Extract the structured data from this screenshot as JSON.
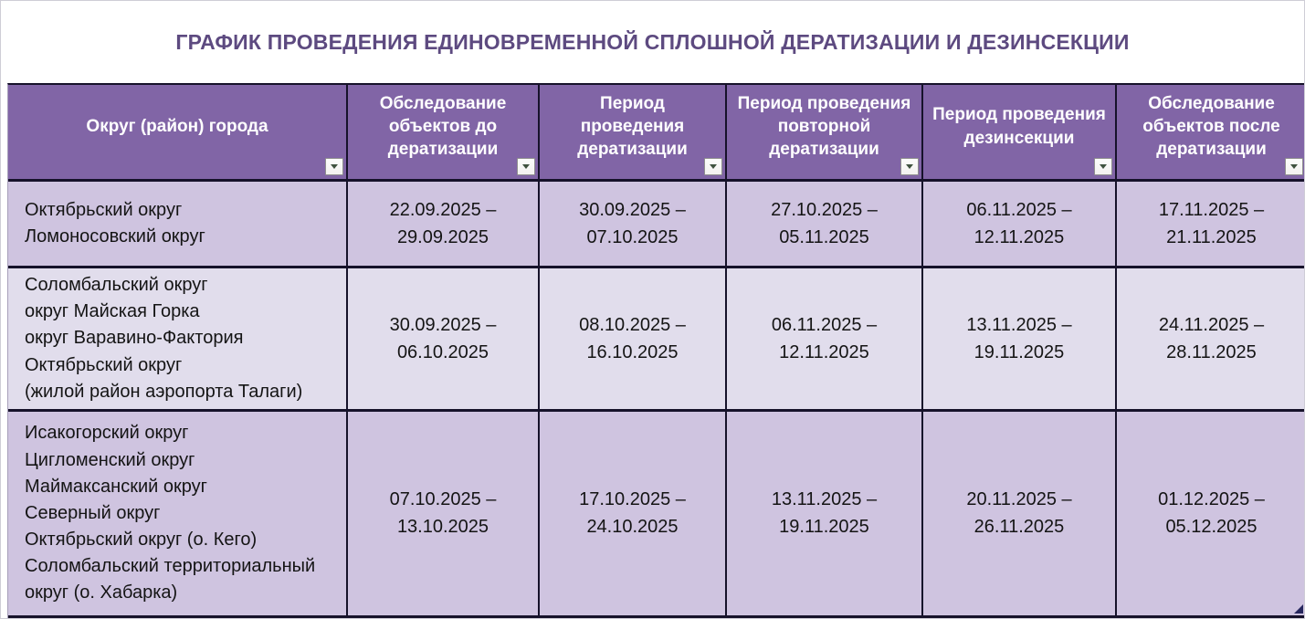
{
  "title": "ГРАФИК ПРОВЕДЕНИЯ ЕДИНОВРЕМЕННОЙ СПЛОШНОЙ ДЕРАТИЗАЦИИ И ДЕЗИНСЕКЦИИ",
  "table": {
    "headers": [
      "Округ (район) города",
      "Обследование объектов до дератизации",
      "Период проведения дератизации",
      "Период проведения повторной дератизации",
      "Период проведения дезинсекции",
      "Обследование объектов после дератизации"
    ],
    "filter_icon": "filter-dropdown-icon",
    "rows": [
      {
        "districts": [
          "Октябрьский округ",
          "Ломоносовский округ"
        ],
        "survey_before": [
          "22.09.2025 –",
          "29.09.2025"
        ],
        "deratization": [
          "30.09.2025 –",
          "07.10.2025"
        ],
        "repeat_deratization": [
          "27.10.2025 –",
          "05.11.2025"
        ],
        "disinsection": [
          "06.11.2025 –",
          "12.11.2025"
        ],
        "survey_after": [
          "17.11.2025 –",
          "21.11.2025"
        ]
      },
      {
        "districts": [
          "Соломбальский округ",
          "округ Майская Горка",
          "округ Варавино-Фактория",
          "Октябрьский округ",
          "(жилой район аэропорта Талаги)"
        ],
        "survey_before": [
          "30.09.2025 –",
          "06.10.2025"
        ],
        "deratization": [
          "08.10.2025 –",
          "16.10.2025"
        ],
        "repeat_deratization": [
          "06.11.2025 –",
          "12.11.2025"
        ],
        "disinsection": [
          "13.11.2025 –",
          "19.11.2025"
        ],
        "survey_after": [
          "24.11.2025 –",
          "28.11.2025"
        ]
      },
      {
        "districts": [
          "Исакогорский округ",
          "Цигломенский округ",
          "Маймаксанский округ",
          "Северный округ",
          "Октябрьский округ (о. Кего)",
          "Соломбальский территориальный",
          "округ (о. Хабарка)"
        ],
        "survey_before": [
          "07.10.2025 –",
          "13.10.2025"
        ],
        "deratization": [
          "17.10.2025 –",
          "24.10.2025"
        ],
        "repeat_deratization": [
          "13.11.2025 –",
          "19.11.2025"
        ],
        "disinsection": [
          "20.11.2025 –",
          "26.11.2025"
        ],
        "survey_after": [
          "01.12.2025 –",
          "05.12.2025"
        ]
      }
    ]
  },
  "colors": {
    "header_bg": "#8165a6",
    "header_text": "#ffffff",
    "row_odd_bg": "#cfc4e0",
    "row_even_bg": "#e1ddec",
    "title_text": "#5d4a80",
    "border": "#16122a",
    "corner_marker": "#27275e"
  }
}
